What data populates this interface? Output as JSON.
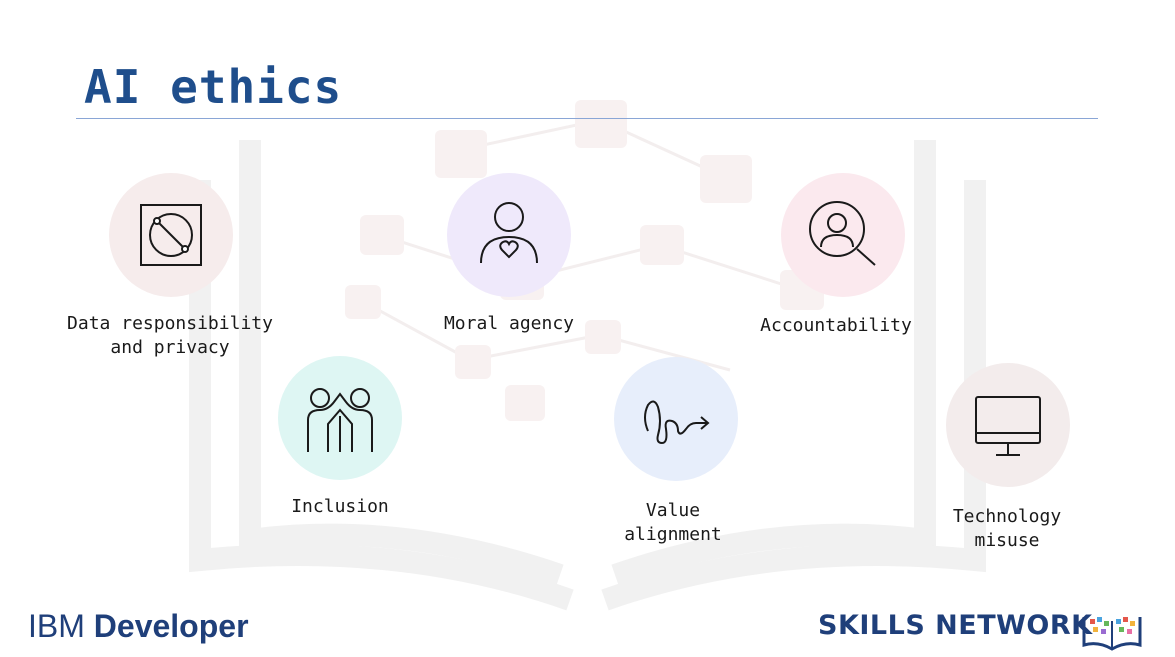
{
  "slide": {
    "title": "AI ethics"
  },
  "items": [
    {
      "label": "Data responsibility\nand privacy",
      "icon": "data-privacy-icon",
      "bg": "#f6ecec"
    },
    {
      "label": "Moral agency",
      "icon": "person-heart-icon",
      "bg": "#efe9fb"
    },
    {
      "label": "Accountability",
      "icon": "person-magnifier-icon",
      "bg": "#fbe9ee"
    },
    {
      "label": "Inclusion",
      "icon": "people-high-five-icon",
      "bg": "#def6f3"
    },
    {
      "label": "Value\nalignment",
      "icon": "squiggle-arrow-icon",
      "bg": "#e7eefb"
    },
    {
      "label": "Technology\nmisuse",
      "icon": "monitor-icon",
      "bg": "#f3ecec"
    }
  ],
  "footer": {
    "ibm_prefix": "IBM",
    "ibm_suffix": "Developer",
    "skills": "SKILLS NETWORK"
  },
  "colors": {
    "title": "#1f4e8c",
    "rule": "#8aa6d6",
    "brand": "#1f3f7a"
  }
}
